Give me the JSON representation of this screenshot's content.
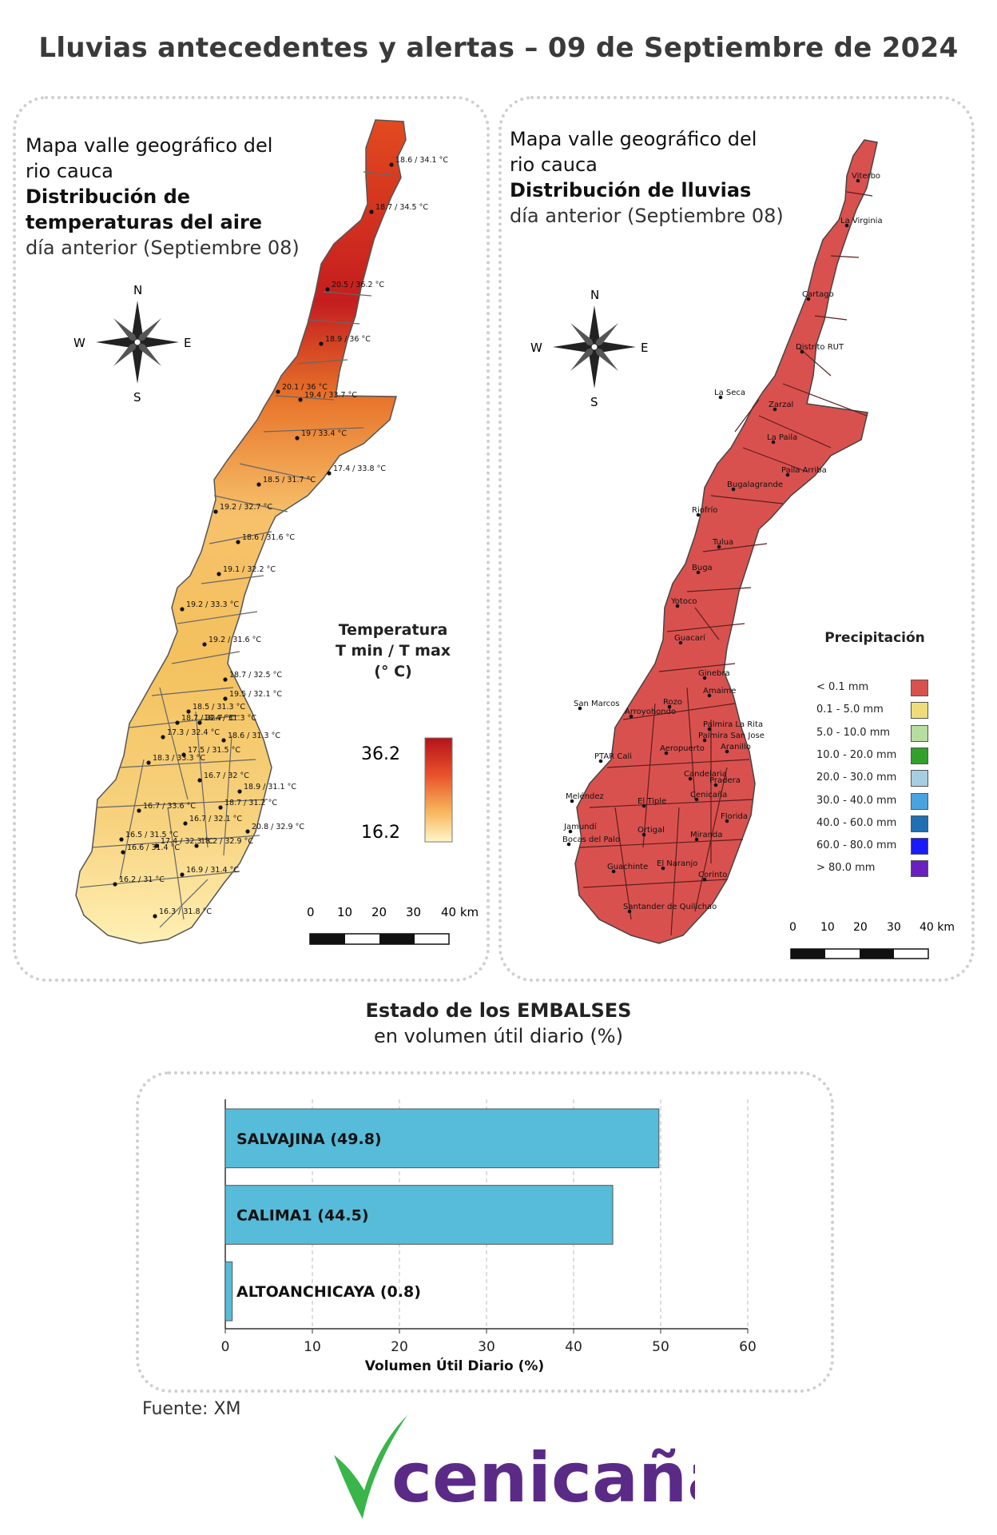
{
  "title": "Lluvias antecedentes y alertas – 09 de Septiembre de 2024",
  "temp_map": {
    "title_line1": "Mapa valle geográfico del",
    "title_line2": "rio cauca",
    "title_line3": "Distribución de",
    "title_line4": "temperaturas del aire",
    "title_line5": "día anterior (Septiembre 08)",
    "legend_title_1": "Temperatura",
    "legend_title_2": "T min / T max",
    "legend_title_3": "(° C)",
    "legend_max": "36.2",
    "legend_min": "16.2",
    "scale_labels": [
      "0",
      "10",
      "20",
      "30",
      "40 km"
    ],
    "station_labels": [
      "18.6 / 34.1 °C",
      "18.7 / 34.5 °C",
      "20.5 / 36.2 °C",
      "18.9 / 36 °C",
      "20.1 / 36 °C",
      "19.4 / 33.7 °C",
      "19 / 33.4 °C",
      "17.4 / 33.8 °C",
      "18.5 / 31.7 °C",
      "19.2 / 32.7 °C",
      "18.6 / 31.6 °C",
      "19.1 / 32.2 °C",
      "19.2 / 33.3 °C",
      "19.2 / 31.6 °C",
      "18.7 / 32.5 °C",
      "19.5 / 32.1 °C",
      "18.5 / 31.3 °C",
      "18.4 / 31.3 °C",
      "18.7 / 32.7 °C",
      "17.3 / 32.4 °C",
      "18.6 / 31.3 °C",
      "17.5 / 31.5 °C",
      "18.3 / 33.3 °C",
      "16.7 / 32 °C",
      "18.9 / 31.1 °C",
      "16.7 / 33.6 °C",
      "18.7 / 31.2 °C",
      "16.7 / 32.1 °C",
      "20.8 / 32.9 °C",
      "16.5 / 31.5 °C",
      "17.4 / 32.3 °C",
      "18.2 / 32.9 °C",
      "16.6 / 31.4 °C",
      "16.9 / 31.4 °C",
      "16.2 / 31 °C",
      "16.3 / 31.8 °C"
    ]
  },
  "rain_map": {
    "title_line1": "Mapa valle geográfico del",
    "title_line2": "rio cauca",
    "title_line3": "Distribución de lluvias",
    "title_line4": "día anterior (Septiembre 08)",
    "legend_title": "Precipitación",
    "legend_items": [
      {
        "label": "< 0.1 mm",
        "color": "#d9514e"
      },
      {
        "label": "0.1 - 5.0 mm",
        "color": "#eedc7a"
      },
      {
        "label": "5.0 - 10.0 mm",
        "color": "#b7dea0"
      },
      {
        "label": "10.0 - 20.0 mm",
        "color": "#33a02c"
      },
      {
        "label": "20.0 - 30.0 mm",
        "color": "#a6cee3"
      },
      {
        "label": "30.0 - 40.0 mm",
        "color": "#4aa3df"
      },
      {
        "label": "40.0 - 60.0 mm",
        "color": "#1f6fb4"
      },
      {
        "label": "60.0 - 80.0 mm",
        "color": "#1a1aff"
      },
      {
        "label": "> 80.0 mm",
        "color": "#6a1fc0"
      }
    ],
    "scale_labels": [
      "0",
      "10",
      "20",
      "30",
      "40 km"
    ],
    "station_labels": [
      "Viterbo",
      "La Virginia",
      "Cartago",
      "Distrito RUT",
      "La Seca",
      "Zarzal",
      "La Paila",
      "Paila Arriba",
      "Bugalagrande",
      "Riofrío",
      "Tulua",
      "Buga",
      "Yotoco",
      "Guacarí",
      "Ginebra",
      "San Marcos",
      "Rozo",
      "Amaime",
      "Palmira La Rita",
      "Arroyohondo",
      "Palmira San Jose",
      "Aeropuerto",
      "Aranillo",
      "PTAR Cali",
      "Candelaria",
      "Pradera",
      "Meléndez",
      "Cenicaña",
      "El Tiple",
      "Florida",
      "Jamundí",
      "Bocas del Palo",
      "Ortigal",
      "Miranda",
      "Guachinte",
      "El Naranjo",
      "Corinto",
      "Santander de Quilichao"
    ]
  },
  "reservoirs": {
    "heading_bold": "Estado de los EMBALSES",
    "heading_sub": "en volumen útil diario (%)",
    "source": "Fuente: XM",
    "logo_text": "cenicaña",
    "chart_data": {
      "type": "bar",
      "orientation": "horizontal",
      "categories": [
        "SALVAJINA (49.8)",
        "CALIMA1 (44.5)",
        "ALTOANCHICAYA (0.8)"
      ],
      "values": [
        49.8,
        44.5,
        0.8
      ],
      "xlabel": "Volumen Útil Diario (%)",
      "xlim": [
        0,
        60
      ],
      "xticks": [
        "0",
        "10",
        "20",
        "30",
        "40",
        "50",
        "60"
      ],
      "bar_color": "#56bcd9",
      "grid": "vertical dashed"
    }
  },
  "colors": {
    "temp_hot": "#b5121b",
    "temp_cold": "#fff6c8",
    "brand_purple": "#5b2a86",
    "brand_green": "#39b54a"
  }
}
